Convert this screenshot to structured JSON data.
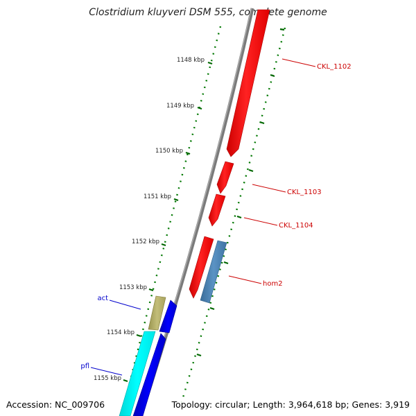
{
  "title": "Clostridium kluyveri DSM 555, complete genome",
  "footer": {
    "accession": "Accession: NC_009706",
    "info": "Topology: circular; Length: 3,964,618 bp; Genes: 3,919"
  },
  "scale_labels": [
    "1148 kbp",
    "1149 kbp",
    "1150 kbp",
    "1151 kbp",
    "1152 kbp",
    "1153 kbp",
    "1154 kbp",
    "1155 kbp"
  ],
  "features": [
    {
      "label": "CKL_1102",
      "strand": "forward",
      "color": "#ff0000",
      "label_color": "#cc0000"
    },
    {
      "label": "CKL_1103",
      "strand": "forward",
      "color": "#ff0000",
      "label_color": "#cc0000"
    },
    {
      "label": "CKL_1104",
      "strand": "forward",
      "color": "#ff0000",
      "label_color": "#cc0000"
    },
    {
      "label": "hom2",
      "strand": "reverse",
      "color": "#4682b4",
      "label_color": "#cc0000"
    },
    {
      "label": "act",
      "strand": "forward",
      "color": "#0000ee",
      "label_color": "#0000cc"
    },
    {
      "label": "pfl",
      "strand": "forward",
      "color": "#0000ee",
      "label_color": "#0000cc"
    }
  ],
  "colors": {
    "backbone": "#808080",
    "forward_cds": "#ff0000",
    "reverse_cds": "#4682b4",
    "blue_cds": "#0000ee",
    "cyan_track": "#00ffff",
    "olive_track": "#b5b06a",
    "tick_green": "#007700"
  }
}
